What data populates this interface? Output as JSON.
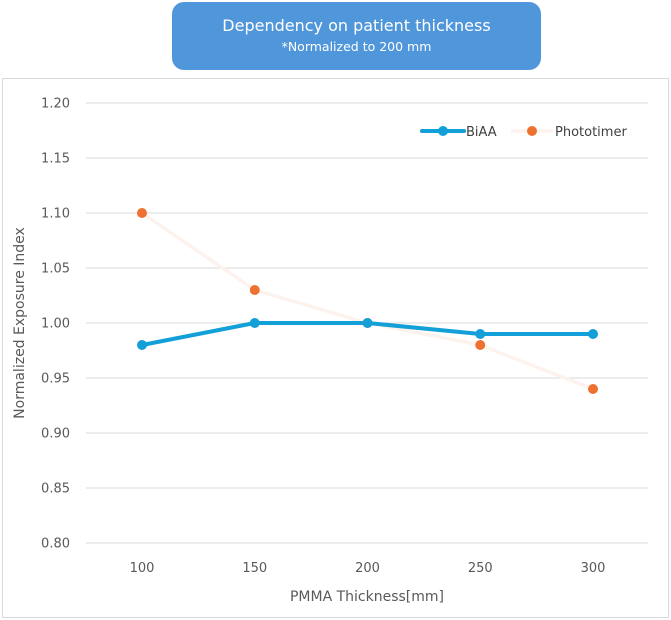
{
  "chart_data": {
    "type": "line",
    "title": "Dependency on patient thickness",
    "subtitle": "*Normalized to 200 mm",
    "xlabel": "PMMA Thickness[mm]",
    "ylabel": "Normalized Exposure Index",
    "categories": [
      "100",
      "150",
      "200",
      "250",
      "300"
    ],
    "x": [
      100,
      150,
      200,
      250,
      300
    ],
    "ylim": [
      0.8,
      1.2
    ],
    "yticks": [
      "0.80",
      "0.85",
      "0.90",
      "0.95",
      "1.00",
      "1.05",
      "1.10",
      "1.15",
      "1.20"
    ],
    "grid": true,
    "legend_position": "top-right",
    "series": [
      {
        "name": "BiAA",
        "values": [
          0.98,
          1.0,
          1.0,
          0.99,
          0.99
        ],
        "color": "#139fd8",
        "line_color": "#139fd8"
      },
      {
        "name": "Phototimer",
        "values": [
          1.1,
          1.03,
          1.0,
          0.98,
          0.94
        ],
        "color": "#ed7232",
        "line_color": "#fdf3ee"
      }
    ]
  }
}
